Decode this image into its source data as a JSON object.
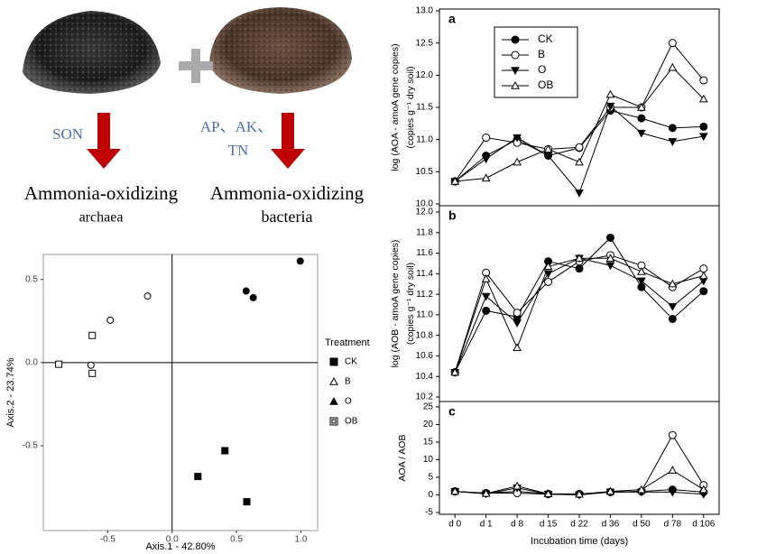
{
  "diagram": {
    "left_label": "SON",
    "right_label_lines": [
      "AP、AK、",
      "TN"
    ],
    "left_target_lines": [
      "Ammonia-oxidizing",
      "archaea"
    ],
    "right_target_lines": [
      "Ammonia-oxidizing",
      "bacteria"
    ]
  },
  "chart_data": [
    {
      "type": "scatter",
      "x_label": "Axis.1 - 42.80%",
      "y_label": "Axis.2 - 23.74%",
      "xlim": [
        -1.0,
        1.13
      ],
      "ylim": [
        -1.01,
        0.65
      ],
      "xticks": [
        -0.5,
        {
          "value": 0,
          "label": "0.0"
        },
        0.5,
        {
          "value": 1,
          "label": "1.0"
        }
      ],
      "yticks": [
        0.5,
        {
          "value": 0,
          "label": "0.0"
        },
        -0.5
      ],
      "zero_lines": true,
      "legend_title": "Treatment",
      "series": [
        {
          "name": "CK",
          "color": "#000000",
          "marker": "circle-filled",
          "legend_marker": "square-filled",
          "x": [
            0.995,
            0.575,
            0.63
          ],
          "values": [
            0.61,
            0.43,
            0.39
          ]
        },
        {
          "name": "B",
          "color": "#000000",
          "marker": "circle-open",
          "legend_marker": "triangle-up-open",
          "x": [
            -0.19,
            -0.48,
            -0.63
          ],
          "values": [
            0.4,
            0.255,
            -0.016
          ]
        },
        {
          "name": "O",
          "color": "#000000",
          "marker": "square-filled",
          "legend_marker": "triangle-up-filled",
          "x": [
            0.41,
            0.2,
            0.58
          ],
          "values": [
            -0.53,
            -0.685,
            -0.837
          ]
        },
        {
          "name": "OB",
          "color": "#000000",
          "marker": "square-open",
          "legend_marker": "square-double",
          "x": [
            -0.62,
            -0.62,
            -0.88
          ],
          "values": [
            0.163,
            -0.065,
            -0.01
          ]
        }
      ]
    },
    {
      "type": "line",
      "panel_label": "a",
      "y_label_lines": [
        "log (AOA - amoA gene copies)",
        "(copies g⁻¹ dry soil)"
      ],
      "ylim": [
        10,
        13
      ],
      "yticks": [
        {
          "value": 10,
          "label": "10.0"
        },
        10.5,
        {
          "value": 11,
          "label": "11.0"
        },
        11.5,
        {
          "value": 12,
          "label": "12.0"
        },
        12.5,
        {
          "value": 13,
          "label": "13.0"
        }
      ],
      "legend": true,
      "series": [
        {
          "name": "CK",
          "color": "#000000",
          "marker": "circle-filled",
          "values": [
            10.35,
            10.75,
            11.0,
            10.75,
            10.87,
            11.45,
            11.33,
            11.18,
            11.2
          ]
        },
        {
          "name": "B",
          "color": "#000000",
          "marker": "circle-open",
          "values": [
            10.35,
            11.03,
            10.95,
            10.85,
            10.88,
            11.5,
            11.5,
            12.5,
            11.92
          ]
        },
        {
          "name": "O",
          "color": "#000000",
          "marker": "triangle-down-filled",
          "values": [
            10.35,
            10.7,
            11.03,
            10.75,
            10.17,
            11.52,
            11.1,
            10.97,
            11.05
          ]
        },
        {
          "name": "OB",
          "color": "#000000",
          "marker": "triangle-up-open",
          "values": [
            10.35,
            10.4,
            10.65,
            10.85,
            10.65,
            11.7,
            11.5,
            12.12,
            11.63
          ]
        }
      ]
    },
    {
      "type": "line",
      "panel_label": "b",
      "y_label_lines": [
        "log (AOB - amoA gene copies)",
        "(copies g⁻¹ dry soil)"
      ],
      "ylim": [
        10.2,
        12
      ],
      "yticks": [
        10.2,
        10.4,
        10.6,
        10.8,
        {
          "value": 11,
          "label": "11.0"
        },
        11.2,
        11.4,
        11.6,
        11.8,
        {
          "value": 12,
          "label": "12.0"
        }
      ],
      "legend": false,
      "series": [
        {
          "color": "#000000",
          "marker": "circle-filled",
          "values": [
            10.44,
            11.04,
            10.98,
            11.52,
            11.45,
            11.75,
            11.27,
            10.96,
            11.23
          ]
        },
        {
          "color": "#000000",
          "marker": "circle-open",
          "values": [
            10.44,
            11.41,
            11.02,
            11.32,
            11.52,
            11.58,
            11.48,
            11.27,
            11.45
          ]
        },
        {
          "color": "#000000",
          "marker": "triangle-down-filled",
          "values": [
            10.44,
            11.18,
            10.92,
            11.4,
            11.55,
            11.48,
            11.33,
            11.08,
            11.33
          ]
        },
        {
          "color": "#000000",
          "marker": "triangle-up-open",
          "values": [
            10.44,
            11.35,
            10.68,
            11.47,
            11.55,
            11.55,
            11.42,
            11.3,
            11.38
          ]
        }
      ]
    },
    {
      "type": "line",
      "panel_label": "c",
      "y_label_lines": [
        "AOA / AOB"
      ],
      "x_label": "Incubation time (days)",
      "categories": [
        "d 0",
        "d 1",
        "d 8",
        "d 15",
        "d 22",
        "d 36",
        "d 50",
        "d 78",
        "d 106"
      ],
      "ylim": [
        -5,
        25
      ],
      "yticks": [
        -5,
        0,
        5,
        10,
        15,
        20,
        25
      ],
      "legend": false,
      "series": [
        {
          "color": "#000000",
          "marker": "circle-filled",
          "values": [
            1,
            0.5,
            1,
            0.3,
            0.3,
            0.8,
            1,
            1.5,
            0.8
          ]
        },
        {
          "color": "#000000",
          "marker": "circle-open",
          "values": [
            1,
            0.5,
            0.5,
            0.2,
            0.2,
            0.8,
            1,
            17,
            2.8
          ]
        },
        {
          "color": "#000000",
          "marker": "triangle-down-filled",
          "values": [
            1,
            0.3,
            2,
            0.2,
            0,
            0.8,
            0.8,
            0.8,
            0.2
          ]
        },
        {
          "color": "#000000",
          "marker": "triangle-up-open",
          "values": [
            1,
            0.4,
            2.5,
            0.3,
            0.2,
            1,
            1.5,
            7,
            1.5
          ]
        }
      ]
    }
  ]
}
